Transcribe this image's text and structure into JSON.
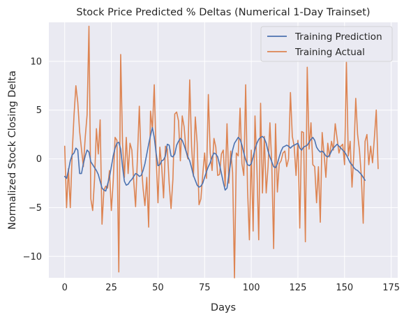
{
  "chart_data": {
    "type": "line",
    "title": "Stock Price Predicted % Deltas (Numerical 1-Day Trainset)",
    "xlabel": "Days",
    "ylabel": "Normalized Stock Closing Delta",
    "xlim": [
      -8.5,
      178.5
    ],
    "ylim": [
      -12.2,
      14.0
    ],
    "xticks": [
      0,
      25,
      50,
      75,
      100,
      125,
      150,
      175
    ],
    "yticks": [
      -10,
      -5,
      0,
      5,
      10
    ],
    "grid": true,
    "legend_position": "top-right",
    "colors": {
      "prediction": "#4c72b0",
      "actual": "#dd8452",
      "plot_bg": "#eaeaf2",
      "grid": "#ffffff"
    },
    "series": [
      {
        "name": "Training Prediction",
        "color": "#4c72b0",
        "y": [
          -1.8,
          -2.0,
          -1.2,
          -0.2,
          0.4,
          0.6,
          1.1,
          0.9,
          -1.5,
          -1.5,
          -0.5,
          0.3,
          0.9,
          0.7,
          -0.3,
          -0.6,
          -0.9,
          -1.2,
          -1.6,
          -2.3,
          -3.0,
          -3.2,
          -3.3,
          -2.6,
          -1.9,
          -0.8,
          0.3,
          1.1,
          1.6,
          1.7,
          1.0,
          -0.8,
          -2.3,
          -2.7,
          -2.6,
          -2.3,
          -2.1,
          -1.8,
          -1.5,
          -1.6,
          -1.8,
          -1.7,
          -1.2,
          -0.5,
          0.5,
          1.5,
          2.4,
          3.2,
          2.2,
          0.6,
          -0.7,
          -0.6,
          -0.2,
          -0.1,
          0.3,
          1.5,
          1.4,
          0.3,
          0.2,
          0.5,
          1.4,
          1.8,
          2.1,
          1.9,
          1.4,
          0.8,
          0.2,
          -0.2,
          -0.9,
          -1.7,
          -2.2,
          -2.7,
          -2.9,
          -2.8,
          -2.5,
          -1.9,
          -1.3,
          -0.8,
          -0.4,
          0.2,
          0.6,
          0.5,
          0.2,
          -0.6,
          -1.5,
          -2.4,
          -3.2,
          -3.0,
          -1.6,
          -0.3,
          0.9,
          1.6,
          1.9,
          2.2,
          2.0,
          1.4,
          0.6,
          -0.1,
          -0.6,
          -0.7,
          -0.5,
          0.2,
          1.0,
          1.6,
          2.0,
          2.2,
          2.3,
          2.1,
          1.6,
          0.8,
          0.2,
          -0.3,
          -0.8,
          -0.9,
          -0.5,
          0.2,
          0.8,
          1.2,
          1.3,
          1.4,
          1.3,
          1.1,
          1.3,
          1.4,
          1.5,
          1.6,
          1.1,
          0.9,
          1.2,
          1.3,
          1.4,
          1.7,
          2.0,
          2.2,
          1.9,
          1.2,
          0.9,
          0.7,
          0.8,
          0.6,
          0.3,
          0.2,
          0.4,
          0.8,
          1.1,
          1.3,
          1.5,
          1.3,
          1.1,
          0.9,
          0.7,
          0.4,
          0.0,
          -0.4,
          -0.6,
          -0.9,
          -1.1,
          -1.2,
          -1.4,
          -1.6,
          -1.9,
          -2.2
        ],
        "x_start": 0
      },
      {
        "name": "Training Actual",
        "color": "#dd8452",
        "x_start": 0,
        "y": [
          1.3,
          -5.0,
          -1.0,
          -5.0,
          0.5,
          4.5,
          7.5,
          5.8,
          2.8,
          1.0,
          -0.8,
          2.2,
          4.5,
          13.6,
          -4.1,
          -5.3,
          -2.1,
          3.1,
          0.5,
          4.0,
          -6.7,
          -3.2,
          -2.8,
          -3.0,
          -1.2,
          -5.3,
          -2.3,
          2.2,
          1.9,
          -11.6,
          10.7,
          1.6,
          -1.9,
          2.2,
          -1.5,
          1.6,
          0.9,
          -2.3,
          -4.9,
          0.2,
          5.4,
          -0.3,
          -3.0,
          -4.8,
          -1.9,
          -7.0,
          4.9,
          3.0,
          7.6,
          0.3,
          -4.5,
          1.2,
          -0.8,
          -4.0,
          1.3,
          1.0,
          -2.5,
          -5.1,
          -2.1,
          4.6,
          4.8,
          3.9,
          -0.2,
          4.4,
          3.3,
          0.9,
          0.0,
          8.1,
          1.3,
          -1.8,
          4.3,
          1.6,
          -4.7,
          -4.1,
          -1.6,
          0.6,
          -2.0,
          6.6,
          0.6,
          -1.2,
          2.1,
          1.2,
          -1.7,
          -1.6,
          0.5,
          0.9,
          -2.8,
          3.6,
          -2.5,
          0.8,
          -1.4,
          -12.2,
          0.6,
          0.3,
          5.2,
          -0.5,
          -1.7,
          7.6,
          -3.1,
          -8.3,
          0.9,
          -7.4,
          4.4,
          -0.7,
          -8.3,
          5.7,
          -3.5,
          2.3,
          -3.5,
          -0.8,
          3.7,
          -0.6,
          -9.2,
          3.6,
          -3.4,
          -0.5,
          -0.2,
          0.6,
          0.8,
          -0.8,
          0.0,
          6.8,
          2.3,
          1.3,
          -1.7,
          1.9,
          -7.1,
          2.8,
          2.7,
          -8.5,
          9.4,
          1.0,
          3.7,
          -0.6,
          -0.8,
          -4.5,
          -0.8,
          -6.5,
          2.7,
          0.5,
          -1.9,
          1.6,
          0.2,
          1.8,
          0.9,
          3.6,
          2.1,
          0.6,
          1.3,
          1.5,
          -0.6,
          9.9,
          0.3,
          1.8,
          -2.9,
          0.6,
          6.2,
          2.5,
          0.9,
          -1.8,
          -6.6,
          1.8,
          2.5,
          -0.6,
          1.3,
          -0.4,
          2.2,
          5.0,
          -1.0
        ]
      }
    ]
  }
}
